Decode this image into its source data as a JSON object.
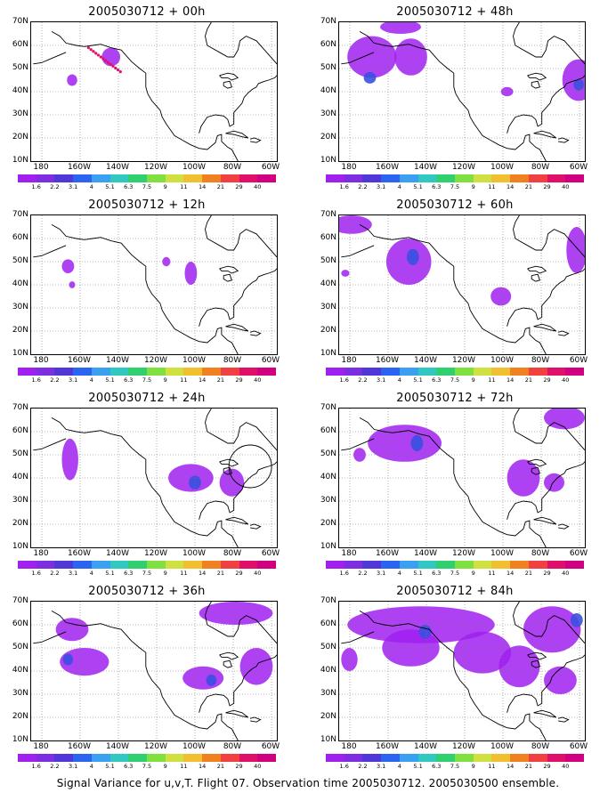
{
  "panels": [
    {
      "title": "2005030712 + 00h"
    },
    {
      "title": "2005030712 + 48h"
    },
    {
      "title": "2005030712 + 12h"
    },
    {
      "title": "2005030712 + 60h"
    },
    {
      "title": "2005030712 + 24h"
    },
    {
      "title": "2005030712 + 72h"
    },
    {
      "title": "2005030712 + 36h"
    },
    {
      "title": "2005030712 + 84h"
    }
  ],
  "lat_labels": [
    "70N",
    "60N",
    "50N",
    "40N",
    "30N",
    "20N",
    "10N"
  ],
  "lon_labels": [
    "180",
    "160W",
    "140W",
    "120W",
    "100W",
    "80W",
    "60W"
  ],
  "colorbar": {
    "labels": [
      "1.6",
      "2.2",
      "3.1",
      "4",
      "5.1",
      "6.3",
      "7.5",
      "9",
      "11",
      "14",
      "21",
      "29",
      "40"
    ],
    "colors": [
      "#a020f0",
      "#7d2ee0",
      "#5038d8",
      "#2a64f0",
      "#3aa0f0",
      "#30c8c0",
      "#30d070",
      "#80e040",
      "#d0e040",
      "#f0c030",
      "#f08020",
      "#f04040",
      "#e0106a",
      "#d00080"
    ]
  },
  "caption": "Signal Variance for u,v,T. Flight 07. Observation time 2005030712. 2005030500 ensemble."
}
